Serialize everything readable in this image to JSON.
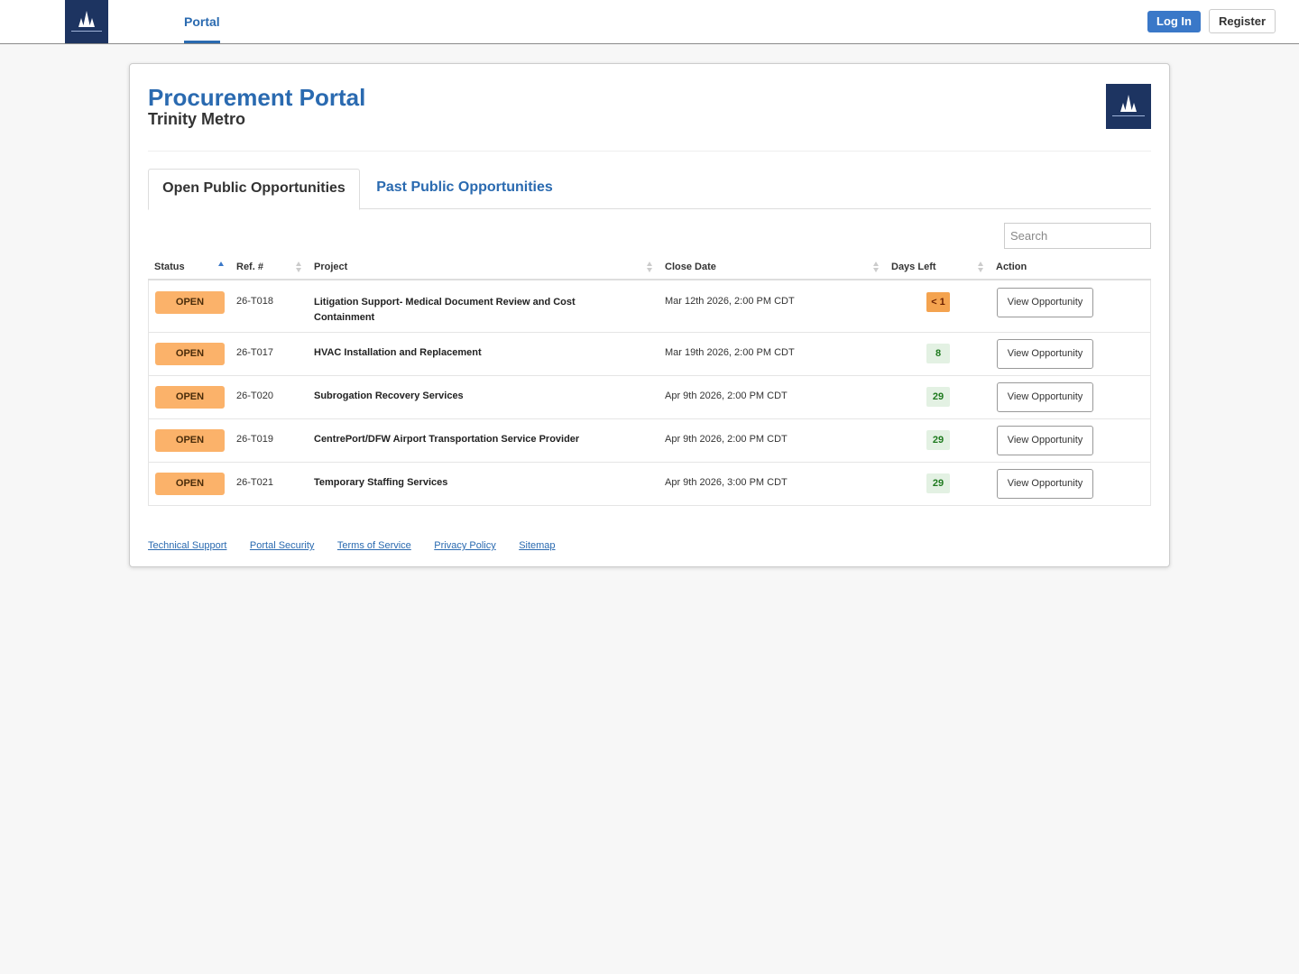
{
  "nav": {
    "portal_label": "Portal",
    "login_label": "Log In",
    "register_label": "Register"
  },
  "header": {
    "title": "Procurement Portal",
    "subtitle": "Trinity Metro"
  },
  "tabs": [
    {
      "label": "Open Public Opportunities",
      "active": true
    },
    {
      "label": "Past Public Opportunities",
      "active": false
    }
  ],
  "search": {
    "placeholder": "Search",
    "value": ""
  },
  "table": {
    "columns": [
      "Status",
      "Ref. #",
      "Project",
      "Close Date",
      "Days Left",
      "Action"
    ],
    "sorted_by": "Status",
    "sort_direction": "ascending",
    "rows": [
      {
        "status": "OPEN",
        "ref": "26-T018",
        "project": "Litigation Support- Medical Document Review and Cost Containment",
        "close_date": "Mar 12th 2026, 2:00 PM CDT",
        "days_left": "< 1",
        "action": "View Opportunity"
      },
      {
        "status": "OPEN",
        "ref": "26-T017",
        "project": "HVAC Installation and Replacement",
        "close_date": "Mar 19th 2026, 2:00 PM CDT",
        "days_left": "8",
        "action": "View Opportunity"
      },
      {
        "status": "OPEN",
        "ref": "26-T020",
        "project": "Subrogation Recovery Services",
        "close_date": "Apr 9th 2026, 2:00 PM CDT",
        "days_left": "29",
        "action": "View Opportunity"
      },
      {
        "status": "OPEN",
        "ref": "26-T019",
        "project": "CentrePort/DFW Airport Transportation Service Provider",
        "close_date": "Apr 9th 2026, 2:00 PM CDT",
        "days_left": "29",
        "action": "View Opportunity"
      },
      {
        "status": "OPEN",
        "ref": "26-T021",
        "project": "Temporary Staffing Services",
        "close_date": "Apr 9th 2026, 3:00 PM CDT",
        "days_left": "29",
        "action": "View Opportunity"
      }
    ]
  },
  "footer": {
    "links": [
      "Technical Support",
      "Portal Security",
      "Terms of Service",
      "Privacy Policy",
      "Sitemap"
    ]
  },
  "colors": {
    "brand_blue": "#2a6ab0",
    "logo_navy": "#1d3461",
    "status_open": "#fbb26a",
    "days_warning": "#f4a34f",
    "days_ok": "#e3f1e3"
  },
  "icons": {
    "logo": "trinity-metro-logo-icon",
    "sort_active": "sort-asc-icon",
    "sort_inactive": "sort-both-icon"
  }
}
